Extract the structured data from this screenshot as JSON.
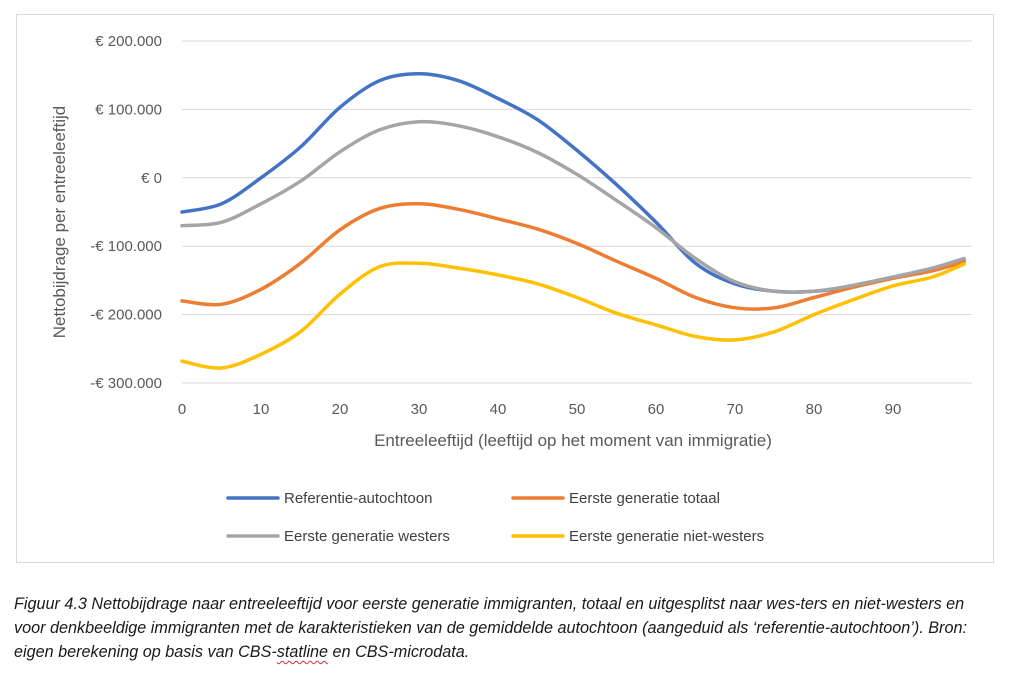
{
  "chart_data": {
    "type": "line",
    "title": "",
    "xlabel": "Entreeleeftijd (leeftijd op het moment van immigratie)",
    "ylabel": "Nettobijdrage per entreeleeftijd",
    "xlim": [
      0,
      100
    ],
    "ylim": [
      -300000,
      200000
    ],
    "x_ticks": [
      0,
      10,
      20,
      30,
      40,
      50,
      60,
      70,
      80,
      90
    ],
    "y_ticks": [
      200000,
      100000,
      0,
      -100000,
      -200000,
      -300000
    ],
    "y_tick_labels": [
      "€ 200.000",
      "€ 100.000",
      "€ 0",
      "-€ 100.000",
      "-€ 200.000",
      "-€ 300.000"
    ],
    "grid": "horizontal",
    "legend_position": "bottom",
    "series": [
      {
        "name": "Referentie-autochtoon",
        "color": "#4472C4",
        "x": [
          0,
          5,
          10,
          15,
          20,
          25,
          30,
          35,
          40,
          45,
          50,
          55,
          60,
          65,
          70,
          75,
          80,
          85,
          90,
          95,
          99
        ],
        "values": [
          -50000,
          -38000,
          0,
          45000,
          103000,
          142000,
          152000,
          142000,
          116000,
          85000,
          40000,
          -10000,
          -65000,
          -125000,
          -155000,
          -166000,
          -166000,
          -158000,
          -146000,
          -133000,
          -120000
        ]
      },
      {
        "name": "Eerste generatie totaal",
        "color": "#ED7D31",
        "x": [
          0,
          5,
          10,
          15,
          20,
          25,
          30,
          35,
          40,
          45,
          50,
          55,
          60,
          65,
          70,
          75,
          80,
          85,
          90,
          95,
          99
        ],
        "values": [
          -180000,
          -185000,
          -163000,
          -125000,
          -76000,
          -45000,
          -38000,
          -46000,
          -60000,
          -75000,
          -96000,
          -122000,
          -147000,
          -175000,
          -190000,
          -190000,
          -175000,
          -160000,
          -147000,
          -136000,
          -123000
        ]
      },
      {
        "name": "Eerste generatie westers",
        "color": "#A5A5A5",
        "x": [
          0,
          5,
          10,
          15,
          20,
          25,
          30,
          35,
          40,
          45,
          50,
          55,
          60,
          65,
          70,
          75,
          80,
          85,
          90,
          95,
          99
        ],
        "values": [
          -70000,
          -65000,
          -38000,
          -5000,
          38000,
          70000,
          82000,
          76000,
          60000,
          37000,
          5000,
          -33000,
          -73000,
          -118000,
          -152000,
          -166000,
          -166000,
          -157000,
          -145000,
          -132000,
          -118000
        ]
      },
      {
        "name": "Eerste generatie niet-westers",
        "color": "#FFC000",
        "x": [
          0,
          5,
          10,
          15,
          20,
          25,
          30,
          35,
          40,
          45,
          50,
          55,
          60,
          65,
          70,
          75,
          80,
          85,
          90,
          95,
          99
        ],
        "values": [
          -268000,
          -278000,
          -258000,
          -225000,
          -170000,
          -130000,
          -125000,
          -132000,
          -142000,
          -155000,
          -175000,
          -198000,
          -215000,
          -232000,
          -237000,
          -225000,
          -200000,
          -178000,
          -158000,
          -145000,
          -126000
        ]
      }
    ]
  },
  "caption": {
    "part1": "Figuur 4.3 Nettobijdrage naar entreeleeftijd voor eerste generatie immigranten, totaal en uitgesplitst naar wes-ters en niet-westers en voor denkbeeldige immigranten met de karakteristieken van de gemiddelde autochtoon (aangeduid als ‘referentie-autochtoon’). Bron: eigen berekening op basis van CBS-",
    "marked_word": "statline",
    "part2": " en CBS-microdata."
  }
}
